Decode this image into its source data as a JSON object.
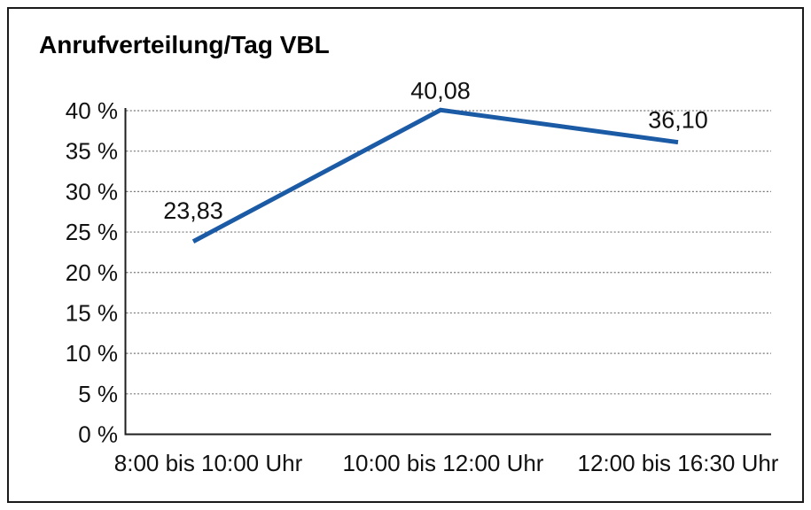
{
  "chart_data": {
    "type": "line",
    "title": "Anrufverteilung/Tag VBL",
    "categories": [
      "8:00 bis 10:00 Uhr",
      "10:00 bis 12:00 Uhr",
      "12:00 bis 16:30 Uhr"
    ],
    "values": [
      23.83,
      40.08,
      36.1
    ],
    "value_labels": [
      "23,83",
      "40,08",
      "36,10"
    ],
    "series_name": "Anrufverteilung/Tag VBL",
    "xlabel": "",
    "ylabel": "",
    "y_ticks": [
      0,
      5,
      10,
      15,
      20,
      25,
      30,
      35,
      40
    ],
    "y_tick_suffix": " %",
    "ylim": [
      0,
      40
    ],
    "grid": "horizontal-dotted",
    "legend": "none",
    "colors": {
      "line": "#1B5AA5",
      "axis": "#1f1f1f",
      "grid": "#767676",
      "text": "#111111",
      "frame_border": "#1a1a1a",
      "background": "#ffffff"
    }
  }
}
